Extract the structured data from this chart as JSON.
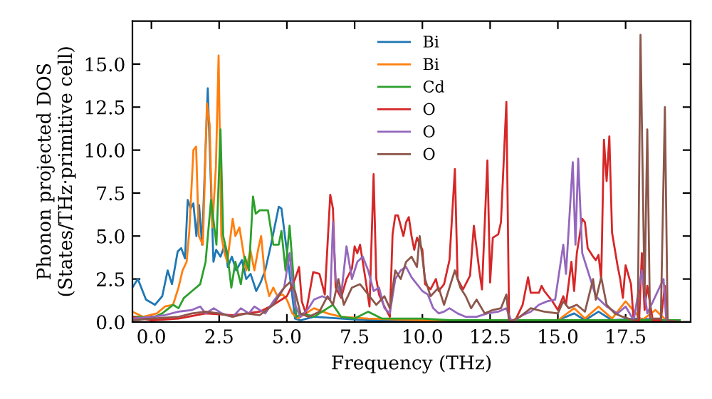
{
  "chart_data": {
    "type": "line",
    "xlabel": "Frequency (THz)",
    "ylabel": "Phonon projected DOS\n(States/THz·primitive cell)",
    "xlim": [
      -0.7,
      19.9
    ],
    "ylim": [
      0,
      17.5
    ],
    "xticks": [
      {
        "value": 0,
        "label": "0.0"
      },
      {
        "value": 2.5,
        "label": "2.5"
      },
      {
        "value": 5,
        "label": "5.0"
      },
      {
        "value": 7.5,
        "label": "7.5"
      },
      {
        "value": 10,
        "label": "10.0"
      },
      {
        "value": 12.5,
        "label": "12.5"
      },
      {
        "value": 15,
        "label": "15.0"
      },
      {
        "value": 17.5,
        "label": "17.5"
      }
    ],
    "yticks": [
      {
        "value": 0,
        "label": "0.0"
      },
      {
        "value": 2.5,
        "label": "2.5"
      },
      {
        "value": 5,
        "label": "5.0"
      },
      {
        "value": 7.5,
        "label": "7.5"
      },
      {
        "value": 10,
        "label": "10.0"
      },
      {
        "value": 12.5,
        "label": "12.5"
      },
      {
        "value": 15,
        "label": "15.0"
      }
    ],
    "grid": false,
    "legend": "top",
    "marker": "none",
    "line_style": "solid",
    "series": [
      {
        "name": "Bi",
        "color": "#1f77b4",
        "x": [
          -0.7,
          -0.5,
          -0.2,
          0.13,
          0.4,
          0.6,
          0.76,
          0.97,
          1.1,
          1.24,
          1.34,
          1.45,
          1.55,
          1.66,
          1.76,
          1.87,
          2.08,
          2.29,
          2.39,
          2.55,
          2.71,
          2.82,
          2.97,
          3.13,
          3.34,
          3.5,
          3.66,
          3.87,
          4.03,
          4.2,
          4.4,
          4.7,
          4.8,
          5.0,
          5.3,
          5.5,
          6,
          7,
          8,
          10,
          15,
          15.6,
          16,
          16.5,
          17,
          18,
          19,
          19.5
        ],
        "values": [
          2.0,
          2.5,
          1.3,
          1.0,
          1.5,
          3.0,
          2.2,
          4.1,
          4.3,
          3.7,
          7.1,
          6.6,
          6.9,
          5.0,
          6.8,
          4.5,
          13.6,
          3.5,
          4.2,
          3.8,
          4.5,
          3.2,
          3.8,
          3.0,
          3.6,
          2.5,
          2.8,
          1.8,
          2.3,
          3.0,
          4.4,
          6.7,
          6.6,
          4.1,
          0.2,
          0.1,
          0.3,
          0.2,
          0.1,
          0.1,
          0.1,
          0.5,
          0.1,
          0.6,
          0.1,
          0.2,
          0.1,
          0
        ]
      },
      {
        "name": "Bi",
        "color": "#ff7f0e",
        "x": [
          -0.7,
          -0.3,
          0.2,
          0.5,
          0.8,
          1.0,
          1.15,
          1.3,
          1.4,
          1.55,
          1.65,
          1.75,
          1.9,
          2.05,
          2.15,
          2.25,
          2.38,
          2.48,
          2.58,
          2.7,
          2.8,
          3.0,
          3.1,
          3.25,
          3.4,
          3.5,
          3.65,
          3.8,
          3.95,
          4.05,
          4.2,
          4.35,
          4.5,
          4.65,
          4.85,
          5.0,
          5.2,
          5.4,
          6.0,
          6.5,
          7,
          8,
          10,
          15,
          15.6,
          16,
          16.5,
          17,
          17.5,
          18.1,
          18.6,
          19,
          19.5
        ],
        "values": [
          0.6,
          0.3,
          0.5,
          0.9,
          1.0,
          2.0,
          3.0,
          3.5,
          5.3,
          10.0,
          10.2,
          5.0,
          4.5,
          12.7,
          11.5,
          5.5,
          9.0,
          15.5,
          5.0,
          4.0,
          3.5,
          6.0,
          5.0,
          5.5,
          4.0,
          3.0,
          4.2,
          3.0,
          4.3,
          5.0,
          2.5,
          1.5,
          2.0,
          1.5,
          1.6,
          1.3,
          0.5,
          0.2,
          0.8,
          0.5,
          0.3,
          0.2,
          0.1,
          0.1,
          0.8,
          0.2,
          0.9,
          0.2,
          1.2,
          0.1,
          0.7,
          0.1,
          0
        ]
      },
      {
        "name": "Cd",
        "color": "#2ca02c",
        "x": [
          -0.7,
          -0.4,
          0,
          0.4,
          0.8,
          1.0,
          1.2,
          1.5,
          1.8,
          2.0,
          2.2,
          2.4,
          2.55,
          2.65,
          2.8,
          2.95,
          3.1,
          3.3,
          3.45,
          3.6,
          3.75,
          3.85,
          4.0,
          4.3,
          4.5,
          4.7,
          4.8,
          4.95,
          5.1,
          5.2,
          5.35,
          5.6,
          6.0,
          6.5,
          6.7,
          7.0,
          7.5,
          8.0,
          8.5,
          9.0,
          10,
          11,
          12,
          19.5
        ],
        "values": [
          0.3,
          0.3,
          0.2,
          0.5,
          1.0,
          0.8,
          1.4,
          1.8,
          2.2,
          3.5,
          7.1,
          4.5,
          11.2,
          5.0,
          4.0,
          2.0,
          3.5,
          2.2,
          3.8,
          3.0,
          7.3,
          6.3,
          6.5,
          6.5,
          4.5,
          4.5,
          5.3,
          3.0,
          5.6,
          3.5,
          0.3,
          0.5,
          0.3,
          0.8,
          1.0,
          0.3,
          0.2,
          0.6,
          0.2,
          0.2,
          0.2,
          0.1,
          0.1,
          0.1
        ]
      },
      {
        "name": "O",
        "color": "#d62728",
        "x": [
          -0.7,
          0,
          1,
          2,
          3,
          4,
          4.5,
          5.0,
          5.3,
          5.45,
          5.55,
          5.7,
          5.97,
          6.2,
          6.4,
          6.6,
          6.7,
          6.8,
          7.0,
          7.2,
          7.4,
          7.5,
          7.6,
          7.7,
          7.9,
          8.05,
          8.2,
          8.3,
          8.4,
          8.6,
          8.8,
          8.9,
          9.0,
          9.1,
          9.3,
          9.4,
          9.5,
          9.6,
          9.7,
          9.8,
          10.0,
          10.1,
          10.3,
          10.5,
          10.6,
          10.8,
          11.0,
          11.2,
          11.3,
          11.5,
          11.76,
          11.9,
          12.1,
          12.2,
          12.4,
          12.5,
          12.6,
          12.8,
          12.9,
          13.1,
          13.2,
          13.4,
          13.7,
          13.9,
          14.0,
          14.3,
          14.4,
          14.5,
          14.8,
          15.0,
          15.2,
          15.3,
          15.5,
          15.6,
          15.7,
          15.9,
          16.0,
          16.1,
          16.3,
          16.4,
          16.5,
          16.6,
          16.7,
          16.8,
          16.9,
          17.0,
          17.2,
          17.3,
          17.4,
          17.5,
          17.7,
          17.8,
          18.0,
          18.1,
          18.2,
          18.3,
          18.5,
          18.8,
          18.95,
          19.0,
          19.5
        ],
        "values": [
          0.3,
          0.1,
          0.2,
          0.5,
          0.4,
          0.6,
          1.0,
          1.5,
          2.5,
          3.2,
          1.2,
          0.5,
          2.9,
          2.8,
          1.6,
          7.4,
          6.6,
          2.0,
          1.4,
          2.5,
          3.1,
          4.4,
          4.0,
          4.5,
          2.5,
          0.9,
          8.6,
          2.5,
          1.6,
          0.9,
          0.3,
          5.1,
          6.2,
          6.2,
          5.0,
          5.8,
          6.1,
          5.0,
          4.2,
          4.9,
          4.2,
          2.2,
          1.9,
          2.5,
          1.8,
          2.2,
          3.6,
          8.9,
          2.5,
          1.9,
          2.7,
          5.6,
          3.0,
          1.9,
          9.4,
          2.3,
          4.9,
          5.1,
          5.8,
          12.8,
          0.2,
          0.0,
          1.0,
          2.6,
          1.7,
          1.7,
          2.1,
          1.8,
          1.2,
          0.7,
          1.5,
          1.0,
          3.5,
          1.8,
          4.0,
          6.0,
          5.8,
          4.3,
          3.8,
          3.6,
          3.9,
          2.5,
          10.6,
          8.2,
          10.8,
          5.2,
          3.3,
          2.5,
          1.4,
          3.3,
          2.2,
          0.0,
          0.1,
          4.0,
          0.7,
          2.1,
          0.1,
          0.1,
          2.1,
          0.1,
          0
        ]
      },
      {
        "name": "O",
        "color": "#9467bd",
        "x": [
          -0.7,
          0,
          0.5,
          1,
          1.5,
          1.8,
          2.0,
          2.3,
          2.6,
          3.0,
          3.3,
          3.6,
          3.8,
          4.2,
          4.5,
          4.9,
          5.1,
          5.3,
          5.5,
          5.8,
          6.0,
          6.3,
          6.6,
          6.7,
          6.8,
          7.0,
          7.2,
          7.4,
          7.6,
          7.8,
          8.0,
          8.2,
          8.4,
          8.6,
          8.8,
          9.0,
          9.2,
          9.4,
          9.6,
          9.8,
          10.0,
          10.2,
          10.4,
          10.6,
          10.8,
          11.0,
          11.3,
          11.6,
          12.0,
          12.4,
          12.8,
          13.1,
          13.3,
          13.7,
          14.0,
          14.3,
          14.6,
          14.9,
          15.2,
          15.3,
          15.55,
          15.65,
          15.75,
          15.9,
          16.1,
          16.4,
          16.8,
          17.2,
          17.5,
          17.8,
          18.1,
          18.3,
          18.9,
          19.0,
          19.5
        ],
        "values": [
          0.2,
          0.3,
          0.4,
          0.6,
          0.7,
          0.9,
          0.5,
          0.8,
          0.5,
          0.3,
          0.8,
          0.5,
          0.9,
          0.5,
          1.2,
          2.0,
          4.0,
          1.0,
          0.3,
          0.8,
          1.3,
          1.5,
          1.3,
          5.8,
          2.5,
          1.5,
          4.4,
          2.5,
          3.5,
          3.8,
          3.0,
          1.8,
          2.0,
          0.8,
          0.5,
          2.5,
          3.0,
          3.2,
          2.6,
          2.2,
          1.8,
          1.6,
          0.8,
          0.5,
          0.6,
          0.8,
          0.5,
          0.3,
          0.3,
          0.5,
          0.6,
          0.8,
          0.0,
          0.4,
          0.6,
          1.0,
          1.2,
          1.3,
          4.5,
          2.8,
          9.3,
          4.5,
          9.5,
          4.0,
          3.0,
          1.5,
          0.9,
          0.5,
          0.9,
          0.1,
          3.0,
          0.5,
          2.5,
          0.1,
          0
        ]
      },
      {
        "name": "O",
        "color": "#8c564b",
        "x": [
          -0.7,
          0,
          1,
          1.5,
          2,
          2.5,
          3,
          3.5,
          4,
          4.5,
          4.9,
          5.1,
          5.3,
          5.5,
          5.8,
          6.2,
          6.5,
          6.7,
          6.9,
          7.1,
          7.4,
          7.7,
          8.0,
          8.3,
          8.6,
          8.8,
          9.0,
          9.2,
          9.4,
          9.6,
          9.8,
          9.9,
          10.1,
          10.3,
          10.6,
          10.8,
          11.2,
          11.4,
          11.6,
          11.8,
          12.0,
          12.3,
          12.6,
          12.9,
          13.1,
          13.2,
          13.6,
          14.0,
          14.5,
          15.0,
          15.2,
          15.4,
          15.7,
          16.0,
          16.3,
          16.4,
          16.6,
          16.8,
          17.1,
          17.4,
          17.8,
          17.95,
          18.05,
          18.2,
          18.3,
          18.4,
          18.8,
          18.95,
          19.05,
          19.5
        ],
        "values": [
          0.1,
          0.2,
          0.3,
          0.5,
          0.6,
          0.5,
          0.3,
          0.5,
          0.4,
          1.0,
          2.0,
          2.3,
          1.8,
          0.5,
          0.3,
          0.6,
          1.5,
          1.0,
          2.5,
          1.0,
          2.0,
          2.2,
          1.6,
          1.0,
          1.5,
          0.8,
          3.0,
          2.5,
          3.5,
          3.8,
          3.2,
          5.0,
          2.5,
          1.5,
          2.0,
          1.0,
          3.0,
          2.0,
          1.5,
          0.8,
          1.3,
          0.5,
          0.7,
          0.8,
          1.6,
          0.0,
          0.3,
          0.8,
          0.6,
          0.5,
          1.2,
          0.8,
          1.0,
          0.6,
          2.5,
          1.3,
          2.6,
          1.0,
          0.5,
          0.3,
          0.1,
          0.2,
          16.7,
          1.5,
          11.2,
          0.2,
          0.2,
          12.5,
          0.1,
          0
        ]
      }
    ]
  }
}
